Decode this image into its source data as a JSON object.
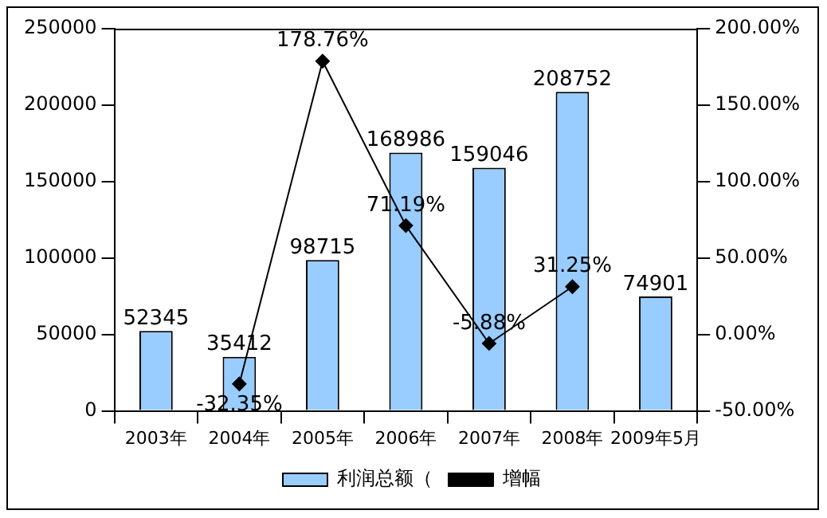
{
  "chart_data": {
    "type": "bar",
    "categories": [
      "2003年",
      "2004年",
      "2005年",
      "2006年",
      "2007年",
      "2008年",
      "2009年5月"
    ],
    "series": [
      {
        "name": "利润总额（",
        "color": "#99ccff",
        "values": [
          52345,
          35412,
          98715,
          168986,
          159046,
          208752,
          74901
        ],
        "value_labels": [
          "52345",
          "35412",
          "98715",
          "168986",
          "159046",
          "208752",
          "74901"
        ]
      },
      {
        "name": "增幅",
        "type": "line",
        "axis": "y2",
        "color": "#000000",
        "values": [
          null,
          -32.35,
          178.76,
          71.19,
          -5.88,
          31.25,
          null
        ],
        "value_labels": [
          null,
          "-32.35%",
          "178.76%",
          "71.19%",
          "-5.88%",
          "31.25%",
          null
        ]
      }
    ],
    "ylim": [
      0,
      250000
    ],
    "yticks": [
      0,
      50000,
      100000,
      150000,
      200000,
      250000
    ],
    "y2lim": [
      -50,
      200
    ],
    "y2ticks": [
      {
        "value": -50,
        "label": "-50.00%"
      },
      {
        "value": 0,
        "label": "0.00%"
      },
      {
        "value": 50,
        "label": "50.00%"
      },
      {
        "value": 100,
        "label": "100.00%"
      },
      {
        "value": 150,
        "label": "150.00%"
      },
      {
        "value": 200,
        "label": "200.00%"
      }
    ],
    "grid": false,
    "legend": "bottom",
    "marker": "diamond"
  }
}
